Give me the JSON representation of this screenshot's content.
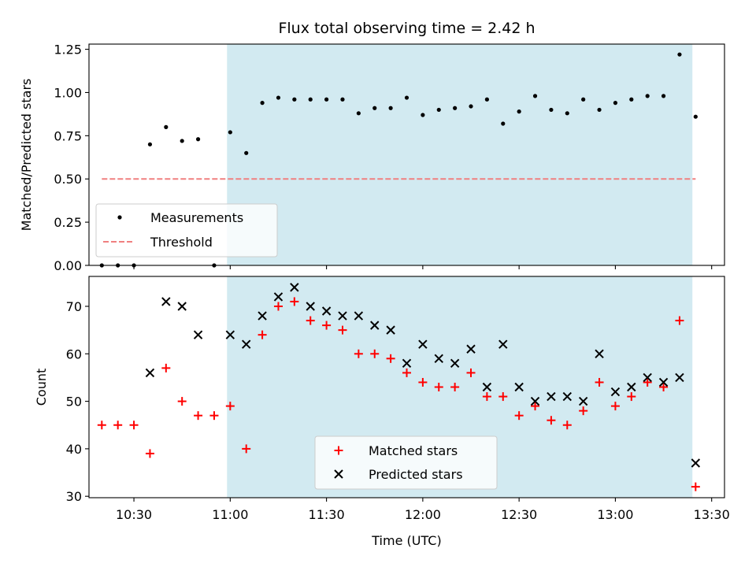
{
  "chart_data": [
    {
      "type": "scatter",
      "title": "Flux total observing time = 2.42 h",
      "xlabel": "",
      "ylabel": "Matched/Predicted stars",
      "xlim": [
        "10:16",
        "13:34"
      ],
      "ylim": [
        0,
        1.28
      ],
      "yticks": [
        0.0,
        0.25,
        0.5,
        0.75,
        1.0,
        1.25
      ],
      "ytick_labels": [
        "0.00",
        "0.25",
        "0.50",
        "0.75",
        "1.00",
        "1.25"
      ],
      "shaded_span": [
        "10:59",
        "13:24"
      ],
      "grid": false,
      "legend_position": "lower-left",
      "series": [
        {
          "name": "Measurements",
          "kind": "dot",
          "color": "#000000",
          "x": [
            "10:20",
            "10:25",
            "10:30",
            "10:35",
            "10:40",
            "10:45",
            "10:50",
            "10:55",
            "11:00",
            "11:05",
            "11:10",
            "11:15",
            "11:20",
            "11:25",
            "11:30",
            "11:35",
            "11:40",
            "11:45",
            "11:50",
            "11:55",
            "12:00",
            "12:05",
            "12:10",
            "12:15",
            "12:20",
            "12:25",
            "12:30",
            "12:35",
            "12:40",
            "12:45",
            "12:50",
            "12:55",
            "13:00",
            "13:05",
            "13:10",
            "13:15",
            "13:20",
            "13:25"
          ],
          "y": [
            0.0,
            0.0,
            0.0,
            0.7,
            0.8,
            0.72,
            0.73,
            0.0,
            0.77,
            0.65,
            0.94,
            0.97,
            0.96,
            0.96,
            0.96,
            0.96,
            0.88,
            0.91,
            0.91,
            0.97,
            0.87,
            0.9,
            0.91,
            0.92,
            0.96,
            0.82,
            0.89,
            0.98,
            0.9,
            0.88,
            0.96,
            0.9,
            0.94,
            0.96,
            0.98,
            0.98,
            1.22,
            0.86
          ]
        },
        {
          "name": "Threshold",
          "kind": "dashed-line",
          "color": "#f08080",
          "x": [
            "10:20",
            "13:25"
          ],
          "y": [
            0.5,
            0.5
          ]
        }
      ]
    },
    {
      "type": "scatter",
      "title": "",
      "xlabel": "Time (UTC)",
      "ylabel": "Count",
      "xlim": [
        "10:16",
        "13:34"
      ],
      "ylim": [
        29.7,
        76.3
      ],
      "yticks": [
        30,
        40,
        50,
        60,
        70
      ],
      "ytick_labels": [
        "30",
        "40",
        "50",
        "60",
        "70"
      ],
      "xticks": [
        "10:30",
        "11:00",
        "11:30",
        "12:00",
        "12:30",
        "13:00",
        "13:30"
      ],
      "xtick_labels": [
        "10:30",
        "11:00",
        "11:30",
        "12:00",
        "12:30",
        "13:00",
        "13:30"
      ],
      "shaded_span": [
        "10:59",
        "13:24"
      ],
      "grid": false,
      "legend_position": "lower-center",
      "series": [
        {
          "name": "Matched stars",
          "kind": "plus",
          "color": "#ff0000",
          "x": [
            "10:20",
            "10:25",
            "10:30",
            "10:35",
            "10:40",
            "10:45",
            "10:50",
            "10:55",
            "11:00",
            "11:05",
            "11:10",
            "11:15",
            "11:20",
            "11:25",
            "11:30",
            "11:35",
            "11:40",
            "11:45",
            "11:50",
            "11:55",
            "12:00",
            "12:05",
            "12:10",
            "12:15",
            "12:20",
            "12:25",
            "12:30",
            "12:35",
            "12:40",
            "12:45",
            "12:50",
            "12:55",
            "13:00",
            "13:05",
            "13:10",
            "13:15",
            "13:20",
            "13:25"
          ],
          "y": [
            45,
            45,
            45,
            39,
            57,
            50,
            47,
            47,
            49,
            40,
            64,
            70,
            71,
            67,
            66,
            65,
            60,
            60,
            59,
            56,
            54,
            53,
            53,
            56,
            51,
            51,
            47,
            49,
            46,
            45,
            48,
            54,
            49,
            51,
            54,
            53,
            67,
            32
          ]
        },
        {
          "name": "Predicted stars",
          "kind": "x",
          "color": "#000000",
          "x": [
            "10:35",
            "10:40",
            "10:45",
            "10:50",
            "11:00",
            "11:05",
            "11:10",
            "11:15",
            "11:20",
            "11:25",
            "11:30",
            "11:35",
            "11:40",
            "11:45",
            "11:50",
            "11:55",
            "12:00",
            "12:05",
            "12:10",
            "12:15",
            "12:20",
            "12:25",
            "12:30",
            "12:35",
            "12:40",
            "12:45",
            "12:50",
            "12:55",
            "13:00",
            "13:05",
            "13:10",
            "13:15",
            "13:20",
            "13:25"
          ],
          "y": [
            56,
            71,
            70,
            64,
            64,
            62,
            68,
            72,
            74,
            70,
            69,
            68,
            68,
            66,
            65,
            58,
            62,
            59,
            58,
            61,
            53,
            62,
            53,
            50,
            51,
            51,
            50,
            60,
            52,
            53,
            55,
            54,
            55,
            37
          ]
        }
      ]
    }
  ],
  "colors": {
    "shade": "#add8e6",
    "shade_opacity": 0.55
  }
}
